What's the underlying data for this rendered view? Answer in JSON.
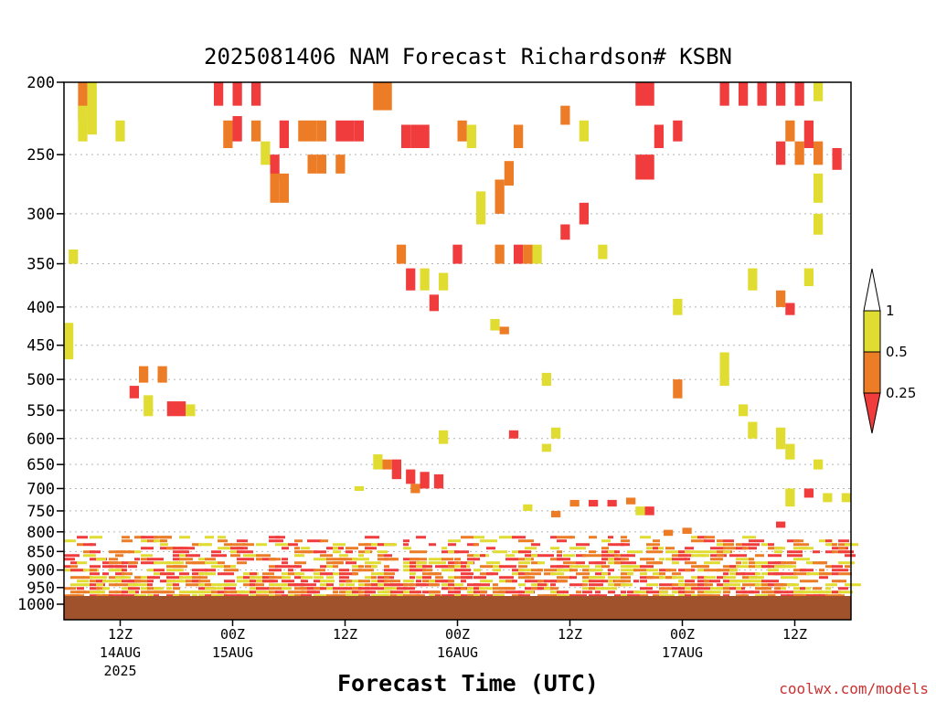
{
  "colors": {
    "lt_025": "#f03c3c",
    "025_05": "#ec7c26",
    "05_1": "#e0dc32",
    "gt_1": "#ffffff",
    "ground": "#a0522d"
  },
  "chart_data": {
    "type": "heatmap",
    "title": "2025081406 NAM Forecast Richardson# KSBN",
    "xlabel": "Forecast Time (UTC)",
    "ylabel": "",
    "credit": "coolwx.com/models",
    "y_axis": {
      "scale": "log-pressure",
      "ylim": [
        1000,
        200
      ],
      "ticks": [
        200,
        250,
        300,
        350,
        400,
        450,
        500,
        550,
        600,
        650,
        700,
        750,
        800,
        850,
        900,
        950,
        1000
      ],
      "grid": true
    },
    "x_axis": {
      "range_hours": [
        0,
        84
      ],
      "ticks": [
        {
          "hour": 6,
          "label": "12Z",
          "date": "14AUG",
          "year": "2025"
        },
        {
          "hour": 18,
          "label": "00Z",
          "date": "15AUG",
          "year": ""
        },
        {
          "hour": 30,
          "label": "12Z",
          "date": "",
          "year": ""
        },
        {
          "hour": 42,
          "label": "00Z",
          "date": "16AUG",
          "year": ""
        },
        {
          "hour": 54,
          "label": "12Z",
          "date": "",
          "year": ""
        },
        {
          "hour": 66,
          "label": "00Z",
          "date": "17AUG",
          "year": ""
        },
        {
          "hour": 78,
          "label": "12Z",
          "date": "",
          "year": ""
        }
      ]
    },
    "legend": {
      "placement": "right",
      "thresholds": [
        "1",
        "0.5",
        "0.25"
      ],
      "categories": [
        "<0.25",
        "0.25-0.5",
        "0.5-1",
        ">1"
      ]
    },
    "cells": [
      {
        "t": 1.5,
        "p": [
          200,
          225
        ],
        "v": 0.3
      },
      {
        "t": 2.5,
        "p": [
          200,
          235
        ],
        "v": 0.7
      },
      {
        "t": 1.5,
        "p": [
          215,
          240
        ],
        "v": 0.7
      },
      {
        "t": 5.5,
        "p": [
          225,
          240
        ],
        "v": 0.7
      },
      {
        "t": 16,
        "p": [
          200,
          215
        ],
        "v": 0.1
      },
      {
        "t": 18,
        "p": [
          200,
          215
        ],
        "v": 0.1
      },
      {
        "t": 20,
        "p": [
          200,
          215
        ],
        "v": 0.1
      },
      {
        "t": 17,
        "p": [
          225,
          245
        ],
        "v": 0.3
      },
      {
        "t": 18,
        "p": [
          222,
          240
        ],
        "v": 0.1
      },
      {
        "t": 20,
        "p": [
          225,
          240
        ],
        "v": 0.3
      },
      {
        "t": 21,
        "p": [
          240,
          258
        ],
        "v": 0.7
      },
      {
        "t": 22,
        "p": [
          250,
          270
        ],
        "v": 0.1
      },
      {
        "t": 22,
        "p": [
          265,
          290
        ],
        "v": 0.3
      },
      {
        "t": 23,
        "p": [
          265,
          290
        ],
        "v": 0.3
      },
      {
        "t": 23,
        "p": [
          225,
          245
        ],
        "v": 0.1
      },
      {
        "t": 25,
        "p": [
          225,
          240
        ],
        "v": 0.3
      },
      {
        "t": 26,
        "p": [
          225,
          240
        ],
        "v": 0.3
      },
      {
        "t": 27,
        "p": [
          225,
          240
        ],
        "v": 0.3
      },
      {
        "t": 29,
        "p": [
          225,
          240
        ],
        "v": 0.1
      },
      {
        "t": 30,
        "p": [
          225,
          240
        ],
        "v": 0.1
      },
      {
        "t": 31,
        "p": [
          225,
          240
        ],
        "v": 0.1
      },
      {
        "t": 26,
        "p": [
          250,
          265
        ],
        "v": 0.3
      },
      {
        "t": 27,
        "p": [
          250,
          265
        ],
        "v": 0.3
      },
      {
        "t": 29,
        "p": [
          250,
          265
        ],
        "v": 0.3
      },
      {
        "t": 33,
        "p": [
          200,
          218
        ],
        "v": 0.3
      },
      {
        "t": 34,
        "p": [
          200,
          218
        ],
        "v": 0.3
      },
      {
        "t": 36,
        "p": [
          228,
          245
        ],
        "v": 0.1
      },
      {
        "t": 37,
        "p": [
          228,
          245
        ],
        "v": 0.1
      },
      {
        "t": 38,
        "p": [
          228,
          245
        ],
        "v": 0.1
      },
      {
        "t": 42,
        "p": [
          225,
          240
        ],
        "v": 0.3
      },
      {
        "t": 43,
        "p": [
          228,
          245
        ],
        "v": 0.7
      },
      {
        "t": 44,
        "p": [
          280,
          310
        ],
        "v": 0.7
      },
      {
        "t": 46,
        "p": [
          270,
          300
        ],
        "v": 0.3
      },
      {
        "t": 47,
        "p": [
          255,
          275
        ],
        "v": 0.3
      },
      {
        "t": 48,
        "p": [
          228,
          245
        ],
        "v": 0.3
      },
      {
        "t": 53,
        "p": [
          215,
          228
        ],
        "v": 0.3
      },
      {
        "t": 55,
        "p": [
          225,
          240
        ],
        "v": 0.7
      },
      {
        "t": 55,
        "p": [
          290,
          310
        ],
        "v": 0.1
      },
      {
        "t": 61,
        "p": [
          200,
          215
        ],
        "v": 0.1
      },
      {
        "t": 62,
        "p": [
          200,
          215
        ],
        "v": 0.1
      },
      {
        "t": 63,
        "p": [
          228,
          245
        ],
        "v": 0.1
      },
      {
        "t": 65,
        "p": [
          225,
          240
        ],
        "v": 0.1
      },
      {
        "t": 61,
        "p": [
          250,
          270
        ],
        "v": 0.1
      },
      {
        "t": 62,
        "p": [
          250,
          270
        ],
        "v": 0.1
      },
      {
        "t": 70,
        "p": [
          200,
          215
        ],
        "v": 0.1
      },
      {
        "t": 72,
        "p": [
          200,
          215
        ],
        "v": 0.1
      },
      {
        "t": 74,
        "p": [
          200,
          215
        ],
        "v": 0.1
      },
      {
        "t": 76,
        "p": [
          200,
          215
        ],
        "v": 0.1
      },
      {
        "t": 78,
        "p": [
          200,
          215
        ],
        "v": 0.1
      },
      {
        "t": 80,
        "p": [
          200,
          212
        ],
        "v": 0.7
      },
      {
        "t": 76,
        "p": [
          240,
          258
        ],
        "v": 0.1
      },
      {
        "t": 78,
        "p": [
          240,
          258
        ],
        "v": 0.3
      },
      {
        "t": 80,
        "p": [
          240,
          258
        ],
        "v": 0.3
      },
      {
        "t": 82,
        "p": [
          245,
          262
        ],
        "v": 0.1
      },
      {
        "t": 79,
        "p": [
          225,
          245
        ],
        "v": 0.1
      },
      {
        "t": 77,
        "p": [
          225,
          240
        ],
        "v": 0.3
      },
      {
        "t": 80,
        "p": [
          265,
          290
        ],
        "v": 0.7
      },
      {
        "t": 80,
        "p": [
          300,
          320
        ],
        "v": 0.7
      },
      {
        "t": 0.5,
        "p": [
          335,
          350
        ],
        "v": 0.7
      },
      {
        "t": 35.5,
        "p": [
          330,
          350
        ],
        "v": 0.3
      },
      {
        "t": 36.5,
        "p": [
          355,
          380
        ],
        "v": 0.1
      },
      {
        "t": 38,
        "p": [
          355,
          380
        ],
        "v": 0.7
      },
      {
        "t": 39,
        "p": [
          385,
          405
        ],
        "v": 0.1
      },
      {
        "t": 41.5,
        "p": [
          330,
          350
        ],
        "v": 0.1
      },
      {
        "t": 40,
        "p": [
          360,
          380
        ],
        "v": 0.7
      },
      {
        "t": 46,
        "p": [
          330,
          350
        ],
        "v": 0.3
      },
      {
        "t": 48,
        "p": [
          330,
          350
        ],
        "v": 0.1
      },
      {
        "t": 49,
        "p": [
          330,
          350
        ],
        "v": 0.3
      },
      {
        "t": 50,
        "p": [
          330,
          350
        ],
        "v": 0.7
      },
      {
        "t": 53,
        "p": [
          310,
          325
        ],
        "v": 0.1
      },
      {
        "t": 57,
        "p": [
          330,
          345
        ],
        "v": 0.7
      },
      {
        "t": 73,
        "p": [
          355,
          380
        ],
        "v": 0.7
      },
      {
        "t": 76,
        "p": [
          380,
          400
        ],
        "v": 0.3
      },
      {
        "t": 77,
        "p": [
          395,
          410
        ],
        "v": 0.1
      },
      {
        "t": 79,
        "p": [
          355,
          375
        ],
        "v": 0.7
      },
      {
        "t": 65,
        "p": [
          390,
          410
        ],
        "v": 0.7
      },
      {
        "t": 45.5,
        "p": [
          415,
          430
        ],
        "v": 0.7
      },
      {
        "t": 46.5,
        "p": [
          425,
          435
        ],
        "v": 0.3
      },
      {
        "t": 0,
        "p": [
          420,
          470
        ],
        "v": 0.7
      },
      {
        "t": 8,
        "p": [
          480,
          505
        ],
        "v": 0.3
      },
      {
        "t": 10,
        "p": [
          480,
          505
        ],
        "v": 0.3
      },
      {
        "t": 7,
        "p": [
          510,
          530
        ],
        "v": 0.1
      },
      {
        "t": 8.5,
        "p": [
          525,
          560
        ],
        "v": 0.7
      },
      {
        "t": 11,
        "p": [
          535,
          560
        ],
        "v": 0.1
      },
      {
        "t": 12,
        "p": [
          535,
          560
        ],
        "v": 0.1
      },
      {
        "t": 13,
        "p": [
          540,
          560
        ],
        "v": 0.7
      },
      {
        "t": 51,
        "p": [
          490,
          510
        ],
        "v": 0.7
      },
      {
        "t": 65,
        "p": [
          500,
          530
        ],
        "v": 0.3
      },
      {
        "t": 70,
        "p": [
          460,
          510
        ],
        "v": 0.7
      },
      {
        "t": 72,
        "p": [
          540,
          560
        ],
        "v": 0.7
      },
      {
        "t": 73,
        "p": [
          570,
          600
        ],
        "v": 0.7
      },
      {
        "t": 76,
        "p": [
          580,
          620
        ],
        "v": 0.7
      },
      {
        "t": 77,
        "p": [
          610,
          640
        ],
        "v": 0.7
      },
      {
        "t": 80,
        "p": [
          640,
          660
        ],
        "v": 0.7
      },
      {
        "t": 40,
        "p": [
          585,
          610
        ],
        "v": 0.7
      },
      {
        "t": 47.5,
        "p": [
          585,
          600
        ],
        "v": 0.1
      },
      {
        "t": 52,
        "p": [
          580,
          600
        ],
        "v": 0.7
      },
      {
        "t": 51,
        "p": [
          610,
          625
        ],
        "v": 0.7
      },
      {
        "t": 33,
        "p": [
          630,
          660
        ],
        "v": 0.7
      },
      {
        "t": 34,
        "p": [
          640,
          660
        ],
        "v": 0.3
      },
      {
        "t": 35,
        "p": [
          640,
          680
        ],
        "v": 0.1
      },
      {
        "t": 36.5,
        "p": [
          660,
          690
        ],
        "v": 0.1
      },
      {
        "t": 38,
        "p": [
          665,
          700
        ],
        "v": 0.1
      },
      {
        "t": 39.5,
        "p": [
          670,
          700
        ],
        "v": 0.1
      },
      {
        "t": 31,
        "p": [
          695,
          705
        ],
        "v": 0.7
      },
      {
        "t": 37,
        "p": [
          690,
          710
        ],
        "v": 0.3
      },
      {
        "t": 54,
        "p": [
          725,
          740
        ],
        "v": 0.3
      },
      {
        "t": 56,
        "p": [
          725,
          740
        ],
        "v": 0.1
      },
      {
        "t": 58,
        "p": [
          725,
          740
        ],
        "v": 0.1
      },
      {
        "t": 60,
        "p": [
          720,
          735
        ],
        "v": 0.3
      },
      {
        "t": 61,
        "p": [
          740,
          760
        ],
        "v": 0.7
      },
      {
        "t": 62,
        "p": [
          740,
          760
        ],
        "v": 0.1
      },
      {
        "t": 52,
        "p": [
          750,
          765
        ],
        "v": 0.3
      },
      {
        "t": 49,
        "p": [
          735,
          750
        ],
        "v": 0.7
      },
      {
        "t": 77,
        "p": [
          700,
          740
        ],
        "v": 0.7
      },
      {
        "t": 79,
        "p": [
          700,
          720
        ],
        "v": 0.1
      },
      {
        "t": 81,
        "p": [
          710,
          730
        ],
        "v": 0.7
      },
      {
        "t": 83,
        "p": [
          710,
          730
        ],
        "v": 0.7
      },
      {
        "t": 76,
        "p": [
          775,
          790
        ],
        "v": 0.1
      },
      {
        "t": 64,
        "p": [
          795,
          810
        ],
        "v": 0.3
      },
      {
        "t": 66,
        "p": [
          790,
          805
        ],
        "v": 0.3
      }
    ],
    "boundary_layer": {
      "p_top": 810,
      "p_bottom": 990,
      "note_density": 0.55,
      "v_mix": [
        0.1,
        0.3,
        0.7
      ]
    },
    "ground_p": [
      975,
      1010
    ]
  }
}
